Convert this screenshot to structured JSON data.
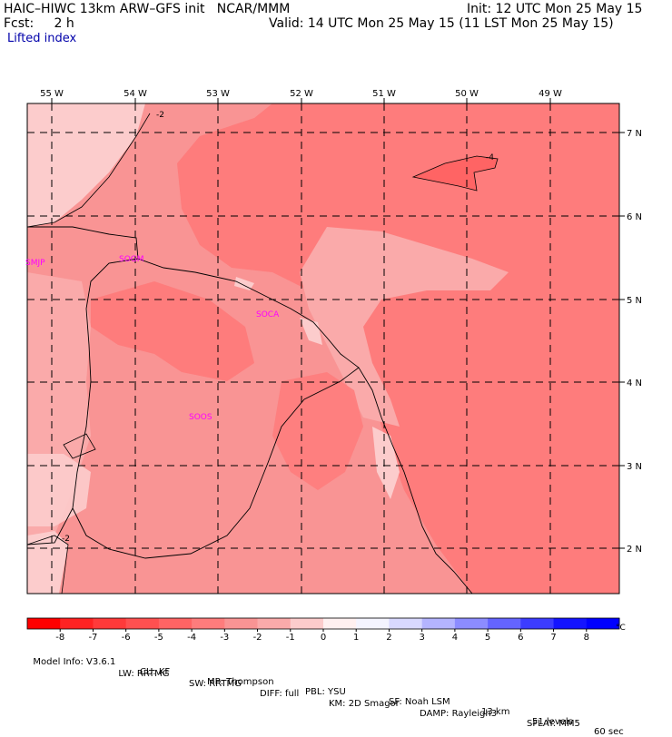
{
  "header": {
    "model_line": "HAIC–HIWC 13km ARW–GFS init   NCAR/MMM",
    "fcst_line": "Fcst:     2 h",
    "field_name": "Lifted index",
    "init_line": "Init: 12 UTC Mon 25 May 15",
    "valid_line": "Valid: 14 UTC Mon 25 May 15 (11 LST Mon 25 May 15)"
  },
  "map": {
    "lon_labels": [
      "55 W",
      "54 W",
      "53 W",
      "52 W",
      "51 W",
      "50 W",
      "49 W"
    ],
    "lat_labels": [
      "7 N",
      "6 N",
      "5 N",
      "4 N",
      "3 N",
      "2 N"
    ],
    "contour_labels": [
      "-2",
      "-4",
      "-2"
    ],
    "stations": [
      "SMJP",
      "SOGM",
      "SOCA",
      "SOOS"
    ],
    "colors": {
      "station": "#ff00ff",
      "frame": "#000000"
    }
  },
  "colorbar": {
    "ticks": [
      "-8",
      "-7",
      "-6",
      "-5",
      "-4",
      "-3",
      "-2",
      "-1",
      "0",
      "1",
      "2",
      "3",
      "4",
      "5",
      "6",
      "7",
      "8"
    ],
    "unit": "°C",
    "colors": [
      "#ff0000",
      "#ff2222",
      "#ff3a3a",
      "#ff5050",
      "#ff6464",
      "#fe7c7c",
      "#f99494",
      "#faaaaa",
      "#fccccc",
      "#fff0f0",
      "#f4f4ff",
      "#d8d8ff",
      "#b4b4ff",
      "#8c8cff",
      "#6464ff",
      "#3c3cff",
      "#1414ff",
      "#0000ff"
    ]
  },
  "footer": {
    "line1": [
      "Model Info: V3.6.1",
      "CU: KF",
      "MP: Thompson",
      "PBL: YSU",
      "SF: Noah LSM",
      "13 km",
      "51 levels",
      "60 sec"
    ],
    "line2": [
      "LW: RRTMG",
      "SW: RRTMG",
      "DIFF: full",
      "KM: 2D Smagor",
      "DAMP: Rayleigh3",
      "SFLAY: MM5"
    ]
  }
}
